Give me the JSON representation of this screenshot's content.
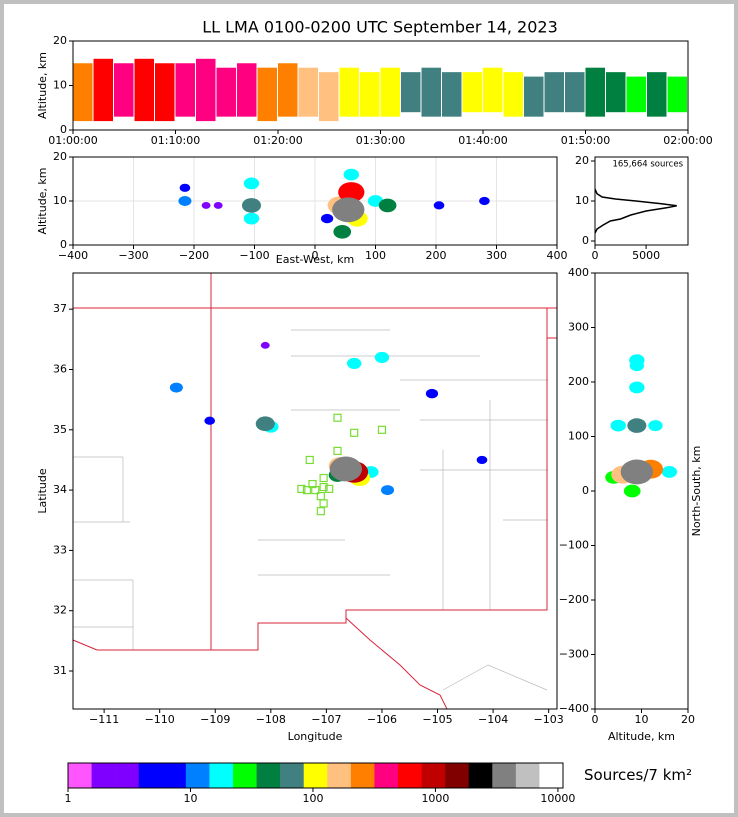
{
  "chart_data": [
    {
      "type": "range",
      "title": "LL LMA 0100-0200 UTC September 14, 2023",
      "ylabel": "Altitude, km",
      "xlim": [
        0,
        60
      ],
      "xticks": [
        {
          "value": 0,
          "label": "01:00:00"
        },
        {
          "value": 10,
          "label": "01:10:00"
        },
        {
          "value": 20,
          "label": "01:20:00"
        },
        {
          "value": 30,
          "label": "01:30:00"
        },
        {
          "value": 40,
          "label": "01:40:00"
        },
        {
          "value": 50,
          "label": "01:50:00"
        },
        {
          "value": 60,
          "label": "02:00:00"
        }
      ],
      "ylim": [
        0,
        20
      ],
      "yticks": [
        0,
        10,
        20
      ],
      "grid": false,
      "x": [
        0,
        2,
        4,
        6,
        8,
        10,
        12,
        14,
        16,
        18,
        20,
        22,
        24,
        26,
        28,
        30,
        32,
        34,
        36,
        38,
        40,
        42,
        44,
        46,
        48,
        50,
        52,
        54,
        56,
        58
      ],
      "low": [
        2,
        2,
        3,
        2,
        2,
        3,
        2,
        3,
        3,
        2,
        3,
        3,
        2,
        3,
        3,
        3,
        4,
        3,
        3,
        4,
        4,
        3,
        3,
        4,
        4,
        3,
        4,
        4,
        3,
        4
      ],
      "high": [
        15,
        16,
        15,
        16,
        15,
        15,
        16,
        14,
        15,
        14,
        15,
        14,
        13,
        14,
        13,
        14,
        13,
        14,
        13,
        13,
        14,
        13,
        12,
        13,
        13,
        14,
        13,
        12,
        13,
        12
      ],
      "values": [
        300,
        500,
        400,
        600,
        500,
        450,
        400,
        350,
        400,
        300,
        250,
        200,
        150,
        120,
        100,
        90,
        80,
        70,
        80,
        100,
        120,
        90,
        80,
        70,
        60,
        50,
        40,
        30,
        40,
        30
      ]
    },
    {
      "type": "density",
      "xlabel": "East-West, km",
      "ylabel": "Altitude, km",
      "xlim": [
        -400,
        400
      ],
      "xticks": [
        {
          "value": -400,
          "label": "−400"
        },
        {
          "value": -300,
          "label": "−300"
        },
        {
          "value": -200,
          "label": "−200"
        },
        {
          "value": -100,
          "label": "−100"
        },
        0,
        100,
        200,
        300,
        400
      ],
      "ylim": [
        0,
        20
      ],
      "yticks": [
        0,
        10,
        20
      ],
      "grid": true,
      "x": [
        -180,
        -160,
        -215,
        205,
        280,
        20,
        -215,
        -105,
        100,
        -105,
        60,
        45,
        120,
        -105,
        70,
        40,
        60,
        55
      ],
      "y": [
        9,
        9,
        13,
        9,
        10,
        6,
        10,
        14,
        10,
        6,
        16,
        3,
        9,
        9,
        6,
        9,
        12,
        8
      ],
      "values": [
        3,
        3,
        5,
        5,
        5,
        8,
        10,
        20,
        20,
        20,
        20,
        40,
        40,
        60,
        100,
        200,
        500,
        3000
      ]
    },
    {
      "type": "line",
      "annotation": "165,664 sources",
      "xlim": [
        0,
        9100
      ],
      "xticks": [
        0,
        5000
      ],
      "ylim": [
        -1,
        21
      ],
      "yticks": [
        0,
        10,
        20
      ],
      "grid": false,
      "color": "#000000",
      "x": [
        0,
        200,
        800,
        1500,
        2500,
        3500,
        5000,
        7000,
        8000,
        6500,
        4000,
        2000,
        700,
        200,
        0
      ],
      "y": [
        2,
        3,
        4,
        5,
        5.5,
        6.5,
        7.5,
        8.3,
        8.8,
        9.3,
        10,
        10.5,
        11,
        11.8,
        13
      ]
    },
    {
      "type": "map",
      "xlabel": "Longitude",
      "ylabel": "Latitude",
      "xlim": [
        -111.56,
        -102.85
      ],
      "xticks": [
        {
          "value": -111,
          "label": "−111"
        },
        {
          "value": -110,
          "label": "−110"
        },
        {
          "value": -109,
          "label": "−109"
        },
        {
          "value": -108,
          "label": "−108"
        },
        {
          "value": -107,
          "label": "−107"
        },
        {
          "value": -106,
          "label": "−106"
        },
        {
          "value": -105,
          "label": "−105"
        },
        {
          "value": -104,
          "label": "−104"
        },
        {
          "value": -103,
          "label": "−103"
        }
      ],
      "ylim": [
        30.37,
        37.6
      ],
      "yticks": [
        31,
        32,
        33,
        34,
        35,
        36,
        37
      ],
      "grid": false,
      "x": [
        -108.1,
        -109.1,
        -104.2,
        -105.1,
        -109.7,
        -105.9,
        -106.5,
        -106.0,
        -108.0,
        -106.2,
        -106.8,
        -108.1,
        -106.4,
        -106.75,
        -106.5,
        -106.65
      ],
      "y": [
        36.4,
        35.15,
        34.5,
        35.6,
        35.7,
        34.0,
        36.1,
        36.2,
        35.05,
        34.3,
        34.25,
        35.1,
        34.2,
        34.4,
        34.3,
        34.35
      ],
      "values": [
        3,
        5,
        5,
        8,
        10,
        10,
        15,
        15,
        20,
        20,
        40,
        60,
        100,
        200,
        800,
        3000
      ],
      "stations": {
        "color": "#77dd33",
        "x": [
          -106.8,
          -106.5,
          -106.0,
          -106.8,
          -107.3,
          -107.05,
          -107.25,
          -107.35,
          -107.45,
          -107.2,
          -107.05,
          -107.1,
          -107.05,
          -107.1,
          -106.95
        ],
        "y": [
          35.2,
          34.95,
          35.0,
          34.65,
          34.5,
          34.2,
          34.1,
          34.0,
          34.02,
          34.0,
          34.05,
          33.9,
          33.78,
          33.65,
          34.02
        ]
      }
    },
    {
      "type": "density",
      "xlabel": "Altitude, km",
      "ylabel": "North-South, km",
      "xlim": [
        0,
        20
      ],
      "xticks": [
        0,
        10,
        20
      ],
      "ylim": [
        -400,
        400
      ],
      "yticks": [
        {
          "value": -400,
          "label": "−400"
        },
        {
          "value": -300,
          "label": "−300"
        },
        {
          "value": -200,
          "label": "−200"
        },
        {
          "value": -100,
          "label": "−100"
        },
        0,
        100,
        200,
        300,
        400
      ],
      "grid": false,
      "x": [
        9,
        13,
        9,
        9,
        5,
        16,
        4,
        8,
        9,
        6,
        12,
        9
      ],
      "y": [
        230,
        120,
        190,
        240,
        120,
        35,
        25,
        0,
        120,
        30,
        40,
        35
      ],
      "values": [
        15,
        15,
        20,
        20,
        20,
        20,
        30,
        30,
        60,
        200,
        300,
        3000
      ]
    },
    {
      "type": "colorbar",
      "label": "Sources/7 km²",
      "log": true,
      "xlim": [
        1,
        11000
      ],
      "xticks": [
        1,
        10,
        100,
        1000,
        10000
      ],
      "colors": [
        "#ff55ff",
        "#8000ff",
        "#8000ff",
        "#0000ff",
        "#0000ff",
        "#0080ff",
        "#00ffff",
        "#00ff00",
        "#008040",
        "#408080",
        "#ffff00",
        "#ffc080",
        "#ff8000",
        "#ff0080",
        "#ff0000",
        "#c00000",
        "#800000",
        "#000000",
        "#808080",
        "#c0c0c0",
        "#ffffff"
      ]
    }
  ]
}
